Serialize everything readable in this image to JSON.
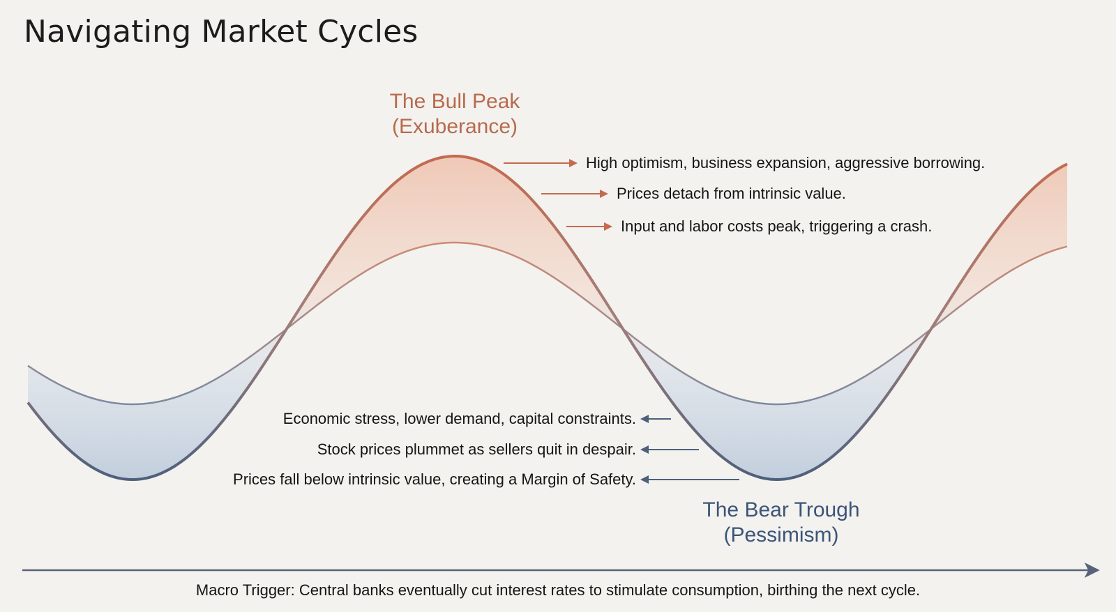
{
  "title": "Navigating Market Cycles",
  "peak": {
    "name": "The Bull Peak",
    "sub": "(Exuberance)",
    "notes": [
      "High optimism, business expansion, aggressive borrowing.",
      "Prices detach from intrinsic value.",
      "Input and labor costs peak, triggering a crash."
    ]
  },
  "trough": {
    "name": "The Bear Trough",
    "sub": "(Pessimism)",
    "notes": [
      "Economic stress, lower demand, capital constraints.",
      "Stock prices plummet as sellers quit in despair.",
      "Prices fall below intrinsic value, creating a Margin of Safety."
    ]
  },
  "footer": "Macro Trigger: Central banks eventually cut interest rates to stimulate consumption, birthing the next cycle.",
  "colors": {
    "bull": "#c46a4f",
    "bull_fill": "#efc7b5",
    "bear": "#4d5f7c",
    "bear_fill": "#c8d3e1",
    "axis": "#56637a",
    "background": "#f3f2ee"
  }
}
